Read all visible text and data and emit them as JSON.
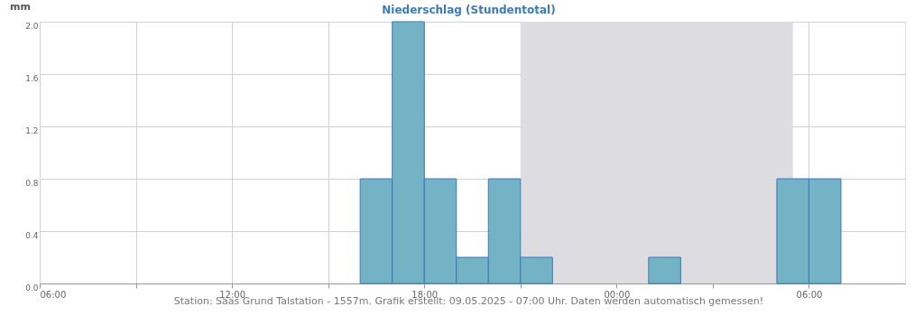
{
  "chart_data": {
    "type": "bar",
    "title": "Niederschlag (Stundentotal)",
    "ylabel": "mm",
    "x": [
      "2025-05-08T16:30",
      "2025-05-08T17:30",
      "2025-05-08T18:30",
      "2025-05-08T19:30",
      "2025-05-08T20:30",
      "2025-05-08T21:30",
      "2025-05-09T01:30",
      "2025-05-09T05:30",
      "2025-05-09T06:30"
    ],
    "series": [
      {
        "color": "#74b2c6",
        "values": [
          0.8,
          2.0,
          0.8,
          0.2,
          0.8,
          0.2,
          0.2,
          0.8,
          0.8
        ]
      }
    ],
    "xlim": [
      "2025-05-08T06:00",
      "2025-05-09T09:00"
    ],
    "xticks": [
      {
        "value": "2025-05-08T06:00",
        "label": "06:00"
      },
      {
        "value": "2025-05-08T09:00",
        "label": null
      },
      {
        "value": "2025-05-08T12:00",
        "label": "12:00"
      },
      {
        "value": "2025-05-08T15:00",
        "label": null
      },
      {
        "value": "2025-05-08T18:00",
        "label": "18:00"
      },
      {
        "value": "2025-05-08T21:00",
        "label": null
      },
      {
        "value": "2025-05-09T00:00",
        "label": "00:00"
      },
      {
        "value": "2025-05-09T03:00",
        "label": null
      },
      {
        "value": "2025-05-09T06:00",
        "label": "06:00"
      }
    ],
    "ylim": [
      0,
      2
    ],
    "yticks": [
      {
        "value": 0,
        "label": "0.0"
      },
      {
        "value": 0.4,
        "label": "0.4"
      },
      {
        "value": 0.8,
        "label": "0.8"
      },
      {
        "value": 1.2,
        "label": "1.2"
      },
      {
        "value": 1.6,
        "label": "1.6"
      },
      {
        "value": 2,
        "label": "2.0"
      }
    ],
    "bands": [
      {
        "axis": "x",
        "from": "2025-05-08T21:00",
        "to": "2025-05-09T05:30",
        "color": "#dddce1"
      }
    ],
    "grid": true,
    "annotations": [
      "Station: Saas Grund Talstation - 1557m. Grafik erstellt: 09.05.2025 - 07:00 Uhr. Daten werden automatisch gemessen!"
    ]
  }
}
